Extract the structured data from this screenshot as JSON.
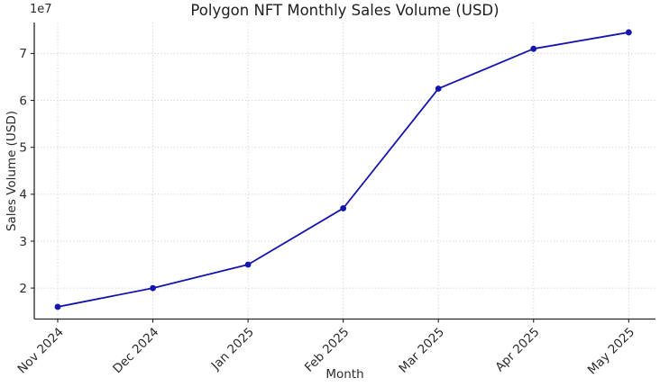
{
  "chart_data": {
    "type": "line",
    "title": "Polygon NFT Monthly Sales Volume (USD)",
    "xlabel": "Month",
    "ylabel": "Sales Volume (USD)",
    "y_multiplier_label": "1e7",
    "categories": [
      "Nov 2024",
      "Dec 2024",
      "Jan 2025",
      "Feb 2025",
      "Mar 2025",
      "Apr 2025",
      "May 2025"
    ],
    "values": [
      16000000,
      20000000,
      25000000,
      37000000,
      62500000,
      71000000,
      74500000
    ],
    "yticks": [
      20000000,
      30000000,
      40000000,
      50000000,
      60000000,
      70000000
    ],
    "ytick_labels": [
      "2",
      "3",
      "4",
      "5",
      "6",
      "7"
    ],
    "ylim": [
      13400000,
      76600000
    ],
    "grid": true,
    "grid_style": "dotted",
    "legend": "none",
    "marker": "circle",
    "colors": {
      "line": "#1515ad",
      "marker": "#1515ad",
      "grid": "#cfcfcf",
      "axis": "#262626",
      "tick_label": "#2b2b2b",
      "background": "#ffffff"
    }
  }
}
